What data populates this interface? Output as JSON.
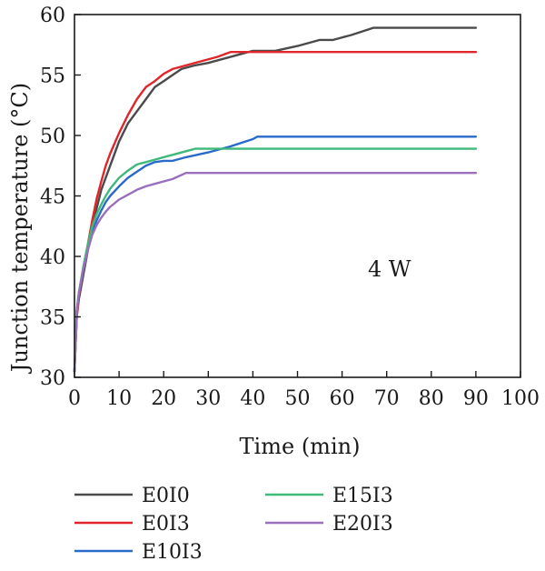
{
  "chart_data": {
    "type": "line",
    "xlabel": "Time (min)",
    "ylabel": "Junction temperature (°C)",
    "xlim": [
      0,
      100
    ],
    "ylim": [
      30,
      60
    ],
    "xticks": [
      0,
      10,
      20,
      30,
      40,
      50,
      60,
      70,
      80,
      90,
      100
    ],
    "yticks": [
      30,
      35,
      40,
      45,
      50,
      55,
      60
    ],
    "grid": false,
    "legend_position": "bottom",
    "annotation": "4 W",
    "series": [
      {
        "name": "E0I0",
        "color": "#4a4a4a",
        "points": [
          [
            0,
            30.5
          ],
          [
            0.5,
            35
          ],
          [
            1,
            36.5
          ],
          [
            2,
            38.5
          ],
          [
            3,
            40.5
          ],
          [
            4,
            42.5
          ],
          [
            5,
            44
          ],
          [
            6,
            45.5
          ],
          [
            7,
            46.5
          ],
          [
            8,
            47.5
          ],
          [
            10,
            49.5
          ],
          [
            12,
            51
          ],
          [
            14,
            52
          ],
          [
            16,
            53
          ],
          [
            18,
            54
          ],
          [
            20,
            54.5
          ],
          [
            22,
            55
          ],
          [
            24,
            55.5
          ],
          [
            27,
            55.8
          ],
          [
            30,
            56
          ],
          [
            33,
            56.3
          ],
          [
            36,
            56.6
          ],
          [
            40,
            57
          ],
          [
            45,
            57
          ],
          [
            50,
            57.4
          ],
          [
            55,
            57.9
          ],
          [
            58,
            57.9
          ],
          [
            62,
            58.3
          ],
          [
            67,
            58.9
          ],
          [
            75,
            58.9
          ],
          [
            90,
            58.9
          ]
        ]
      },
      {
        "name": "E0I3",
        "color": "#e0262b",
        "points": [
          [
            0,
            30.5
          ],
          [
            0.5,
            35
          ],
          [
            1,
            36.8
          ],
          [
            2,
            39
          ],
          [
            3,
            41
          ],
          [
            4,
            43
          ],
          [
            5,
            44.8
          ],
          [
            6,
            46.2
          ],
          [
            7,
            47.5
          ],
          [
            8,
            48.5
          ],
          [
            10,
            50.2
          ],
          [
            12,
            51.7
          ],
          [
            14,
            53
          ],
          [
            16,
            54
          ],
          [
            18,
            54.5
          ],
          [
            20,
            55.1
          ],
          [
            22,
            55.5
          ],
          [
            25,
            55.8
          ],
          [
            28,
            56.1
          ],
          [
            32,
            56.5
          ],
          [
            35,
            56.9
          ],
          [
            40,
            56.9
          ],
          [
            50,
            56.9
          ],
          [
            70,
            56.9
          ],
          [
            90,
            56.9
          ]
        ]
      },
      {
        "name": "E10I3",
        "color": "#2a6acb",
        "points": [
          [
            0,
            30.5
          ],
          [
            0.5,
            35.5
          ],
          [
            1,
            37
          ],
          [
            2,
            39
          ],
          [
            3,
            40.8
          ],
          [
            4,
            42
          ],
          [
            5,
            43
          ],
          [
            6,
            43.8
          ],
          [
            7,
            44.5
          ],
          [
            8,
            45
          ],
          [
            10,
            45.8
          ],
          [
            12,
            46.5
          ],
          [
            14,
            47
          ],
          [
            16,
            47.5
          ],
          [
            18,
            47.8
          ],
          [
            20,
            47.9
          ],
          [
            22,
            47.9
          ],
          [
            25,
            48.2
          ],
          [
            30,
            48.6
          ],
          [
            35,
            49.1
          ],
          [
            40,
            49.7
          ],
          [
            41,
            49.9
          ],
          [
            50,
            49.9
          ],
          [
            70,
            49.9
          ],
          [
            90,
            49.9
          ]
        ]
      },
      {
        "name": "E15I3",
        "color": "#3fb97a",
        "points": [
          [
            0,
            30.5
          ],
          [
            0.5,
            35.5
          ],
          [
            1,
            37
          ],
          [
            2,
            39.2
          ],
          [
            3,
            41
          ],
          [
            4,
            42.5
          ],
          [
            5,
            43.5
          ],
          [
            6,
            44.3
          ],
          [
            7,
            45
          ],
          [
            8,
            45.6
          ],
          [
            10,
            46.5
          ],
          [
            12,
            47.1
          ],
          [
            14,
            47.6
          ],
          [
            16,
            47.8
          ],
          [
            18,
            48
          ],
          [
            20,
            48.2
          ],
          [
            22,
            48.4
          ],
          [
            25,
            48.7
          ],
          [
            27,
            48.9
          ],
          [
            30,
            48.9
          ],
          [
            40,
            48.9
          ],
          [
            60,
            48.9
          ],
          [
            90,
            48.9
          ]
        ]
      },
      {
        "name": "E20I3",
        "color": "#9a6fbd",
        "points": [
          [
            0,
            30.5
          ],
          [
            0.5,
            35.5
          ],
          [
            1,
            37
          ],
          [
            2,
            39
          ],
          [
            3,
            40.5
          ],
          [
            4,
            41.8
          ],
          [
            5,
            42.6
          ],
          [
            6,
            43.2
          ],
          [
            7,
            43.7
          ],
          [
            8,
            44.1
          ],
          [
            10,
            44.7
          ],
          [
            12,
            45.1
          ],
          [
            14,
            45.5
          ],
          [
            16,
            45.8
          ],
          [
            18,
            46
          ],
          [
            20,
            46.2
          ],
          [
            22,
            46.4
          ],
          [
            25,
            46.9
          ],
          [
            30,
            46.9
          ],
          [
            50,
            46.9
          ],
          [
            90,
            46.9
          ]
        ]
      }
    ]
  }
}
